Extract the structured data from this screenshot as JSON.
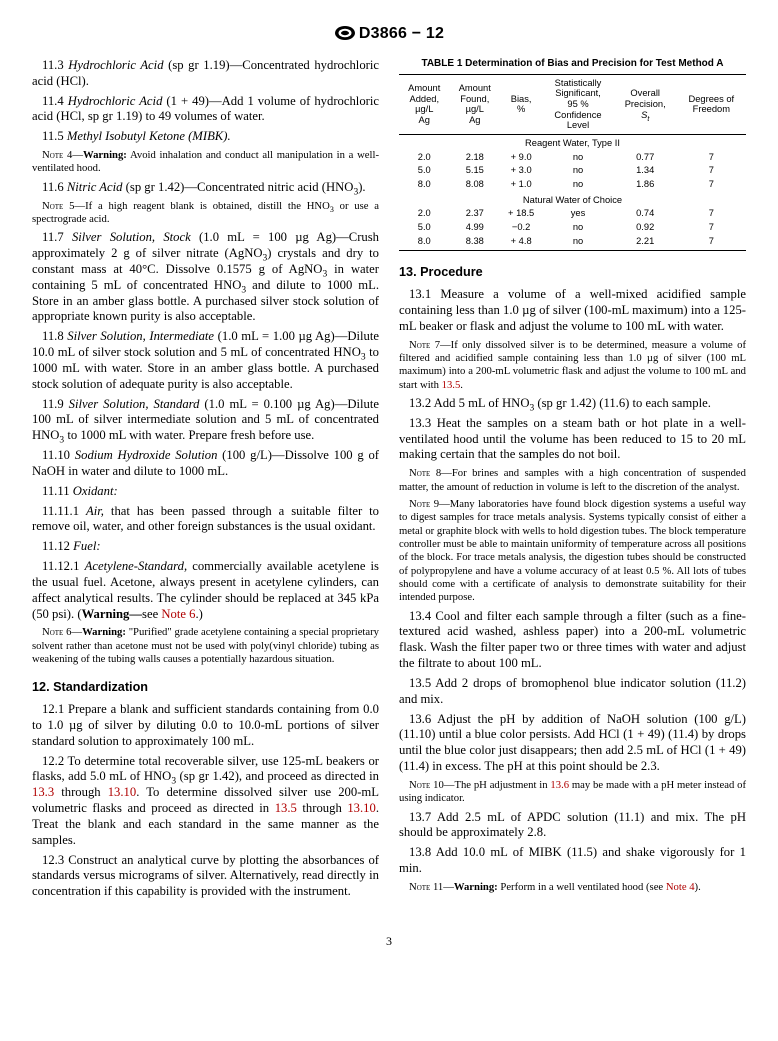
{
  "doc": {
    "designation": "D3866 − 12",
    "page_number": "3"
  },
  "left": {
    "p11_3": "11.3 Hydrochloric Acid (sp gr 1.19)—Concentrated hydrochloric acid (HCl).",
    "p11_4": "11.4 Hydrochloric Acid (1 + 49)—Add 1 volume of hydrochloric acid (HCl, sp gr 1.19) to 49 volumes of water.",
    "p11_5": "11.5 Methyl Isobutyl Ketone (MIBK).",
    "note4": "Note 4—Warning: Avoid inhalation and conduct all manipulation in a well-ventilated hood.",
    "p11_6": "11.6 Nitric Acid (sp gr 1.42)—Concentrated nitric acid (HNO₃).",
    "note5": "Note 5—If a high reagent blank is obtained, distill the HNO₃ or use a spectrograde acid.",
    "p11_7": "11.7 Silver Solution, Stock (1.0 mL = 100 µg Ag)—Crush approximately 2 g of silver nitrate (AgNO₃) crystals and dry to constant mass at 40°C. Dissolve 0.1575 g of AgNO₃ in water containing 5 mL of concentrated HNO₃ and dilute to 1000 mL. Store in an amber glass bottle. A purchased silver stock solution of appropriate known purity is also acceptable.",
    "p11_8": "11.8 Silver Solution, Intermediate (1.0 mL = 1.00 µg Ag)—Dilute 10.0 mL of silver stock solution and 5 mL of concentrated HNO₃ to 1000 mL with water. Store in an amber glass bottle. A purchased stock solution of adequate purity is also acceptable.",
    "p11_9": "11.9 Silver Solution, Standard (1.0 mL = 0.100 µg Ag)—Dilute 100 mL of silver intermediate solution and 5 mL of concentrated HNO₃ to 1000 mL with water. Prepare fresh before use.",
    "p11_10": "11.10 Sodium Hydroxide Solution (100 g/L)—Dissolve 100 g of NaOH in water and dilute to 1000 mL.",
    "p11_11": "11.11 Oxidant:",
    "p11_11_1": "11.11.1 Air, that has been passed through a suitable filter to remove oil, water, and other foreign substances is the usual oxidant.",
    "p11_12": "11.12 Fuel:",
    "p11_12_1a": "11.12.1 Acetylene-Standard, commercially available acetylene is the usual fuel. Acetone, always present in acetylene cylinders, can affect analytical results. The cylinder should be replaced at 345 kPa (50 psi). (Warning—see ",
    "note6_link": "Note 6",
    "p11_12_1b": ".)",
    "note6": "Note 6—Warning: \"Purified\" grade acetylene containing a special proprietary solvent rather than acetone must not be used with poly(vinyl chloride) tubing as weakening of the tubing walls causes a potentially hazardous situation.",
    "h12": "12. Standardization",
    "p12_1": "12.1 Prepare a blank and sufficient standards containing from 0.0 to 1.0 µg of silver by diluting 0.0 to 10.0-mL portions of silver standard solution to approximately 100 mL.",
    "p12_2a": "12.2 To determine total recoverable silver, use 125-mL beakers or flasks, add 5.0 mL of HNO₃ (sp gr 1.42), and proceed as directed in ",
    "l13_3": "13.3",
    "p12_2b": " through ",
    "l13_10": "13.10",
    "p12_2c": ". To determine dissolved silver use 200-mL volumetric flasks and proceed as directed in ",
    "l13_5": "13.5",
    "p12_2d": " through ",
    "l13_10b": "13.10",
    "p12_2e": ". Treat the blank and each standard in the same manner as the samples.",
    "p12_3": "12.3 Construct an analytical curve by plotting the absorbances of standards versus micrograms of silver. Alternatively, read directly in concentration if this capability is provided with the instrument."
  },
  "table1": {
    "title": "TABLE 1 Determination of Bias and Precision for Test Method A",
    "headers": [
      "Amount\nAdded,\nµg/L\nAg",
      "Amount\nFound,\nµg/L\nAg",
      "Bias,\n%",
      "Statistically\nSignificant,\n95 %\nConfidence\nLevel",
      "Overall\nPrecision,\nSₜ",
      "Degrees of\nFreedom"
    ],
    "section1": "Reagent Water, Type II",
    "rows1": [
      [
        "2.0",
        "2.18",
        "+ 9.0",
        "no",
        "0.77",
        "7"
      ],
      [
        "5.0",
        "5.15",
        "+ 3.0",
        "no",
        "1.34",
        "7"
      ],
      [
        "8.0",
        "8.08",
        "+ 1.0",
        "no",
        "1.86",
        "7"
      ]
    ],
    "section2": "Natural Water of Choice",
    "rows2": [
      [
        "2.0",
        "2.37",
        "+ 18.5",
        "yes",
        "0.74",
        "7"
      ],
      [
        "5.0",
        "4.99",
        "−0.2",
        "no",
        "0.92",
        "7"
      ],
      [
        "8.0",
        "8.38",
        "+ 4.8",
        "no",
        "2.21",
        "7"
      ]
    ]
  },
  "right": {
    "h13": "13. Procedure",
    "p13_1": "13.1 Measure a volume of a well-mixed acidified sample containing less than 1.0 µg of silver (100-mL maximum) into a 125-mL beaker or flask and adjust the volume to 100 mL with water.",
    "note7a": "Note 7—If only dissolved silver is to be determined, measure a volume of filtered and acidified sample containing less than 1.0 µg of silver (100 mL maximum) into a 200-mL volumetric flask and adjust the volume to 100 mL and start with ",
    "note7_link": "13.5",
    "note7b": ".",
    "p13_2": "13.2 Add 5 mL of HNO₃ (sp gr 1.42) (11.6) to each sample.",
    "p13_3": "13.3 Heat the samples on a steam bath or hot plate in a well-ventilated hood until the volume has been reduced to 15 to 20 mL making certain that the samples do not boil.",
    "note8": "Note 8—For brines and samples with a high concentration of suspended matter, the amount of reduction in volume is left to the discretion of the analyst.",
    "note9": "Note 9—Many laboratories have found block digestion systems a useful way to digest samples for trace metals analysis. Systems typically consist of either a metal or graphite block with wells to hold digestion tubes. The block temperature controller must be able to maintain uniformity of temperature across all positions of the block. For trace metals analysis, the digestion tubes should be constructed of polypropylene and have a volume accuracy of at least 0.5 %. All lots of tubes should come with a certificate of analysis to demonstrate suitability for their intended purpose.",
    "p13_4": "13.4 Cool and filter each sample through a filter (such as a fine-textured acid washed, ashless paper) into a 200-mL volumetric flask. Wash the filter paper two or three times with water and adjust the filtrate to about 100 mL.",
    "p13_5": "13.5 Add 2 drops of bromophenol blue indicator solution (11.2) and mix.",
    "p13_6": "13.6 Adjust the pH by addition of NaOH solution (100 g/L) (11.10) until a blue color persists. Add HCl (1 + 49) (11.4) by drops until the blue color just disappears; then add 2.5 mL of HCl (1 + 49) (11.4) in excess. The pH at this point should be 2.3.",
    "note10a": "Note 10—The pH adjustment in ",
    "note10_link": "13.6",
    "note10b": " may be made with a pH meter instead of using indicator.",
    "p13_7": "13.7 Add 2.5 mL of APDC solution (11.1) and mix. The pH should be approximately 2.8.",
    "p13_8": "13.8 Add 10.0 mL of MIBK (11.5) and shake vigorously for 1 min.",
    "note11a": "Note 11—Warning: Perform in a well ventilated hood (see ",
    "note11_link": "Note 4",
    "note11b": ")."
  }
}
